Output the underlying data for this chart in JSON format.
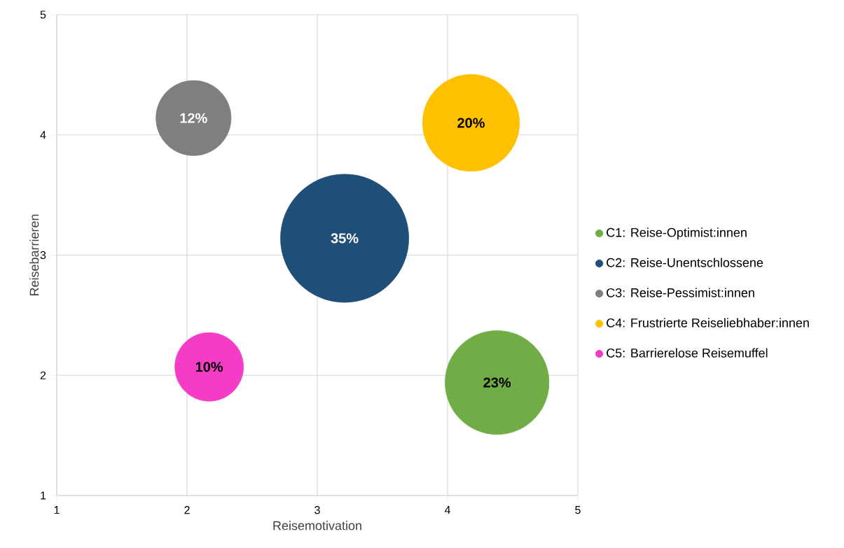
{
  "chart_data": {
    "type": "bubble",
    "xlabel": "Reisemotivation",
    "ylabel": "Reisebarrieren",
    "xlim": [
      1,
      5
    ],
    "ylim": [
      1,
      5
    ],
    "xticks": [
      1,
      2,
      3,
      4,
      5
    ],
    "yticks": [
      1,
      2,
      3,
      4,
      5
    ],
    "grid": true,
    "legend": "right",
    "marker": "circle",
    "series": [
      {
        "name": "C1: Reise-Optimist:innen",
        "color": "#70ad47",
        "x": [
          4.38
        ],
        "values": [
          1.94
        ],
        "sizes": [
          0.657
        ]
      },
      {
        "name": "C2: Reise-Unentschlossene",
        "color": "#1f4e79",
        "x": [
          3.21
        ],
        "values": [
          3.14
        ],
        "sizes": [
          1
        ]
      },
      {
        "name": "C3: Reise-Pessimist:innen",
        "color": "#7f7f7f",
        "x": [
          2.05
        ],
        "values": [
          4.14
        ],
        "sizes": [
          0.343
        ]
      },
      {
        "name": "C4: Frustrierte Reiseliebhaber:innen",
        "color": "#ffc000",
        "x": [
          4.18
        ],
        "values": [
          4.1
        ],
        "sizes": [
          0.571
        ]
      },
      {
        "name": "C5: Barrierelose Reisemuffel",
        "color": "#f43cc7",
        "x": [
          2.17
        ],
        "values": [
          2.07
        ],
        "sizes": [
          0.286
        ]
      }
    ],
    "annotations": [
      {
        "text": "23%",
        "x": 4.38,
        "y": 1.94
      },
      {
        "text": "35%",
        "x": 3.21,
        "y": 3.14
      },
      {
        "text": "12%",
        "x": 2.05,
        "y": 4.14
      },
      {
        "text": "20%",
        "x": 4.18,
        "y": 4.1
      },
      {
        "text": "10%",
        "x": 2.17,
        "y": 2.07
      }
    ]
  }
}
